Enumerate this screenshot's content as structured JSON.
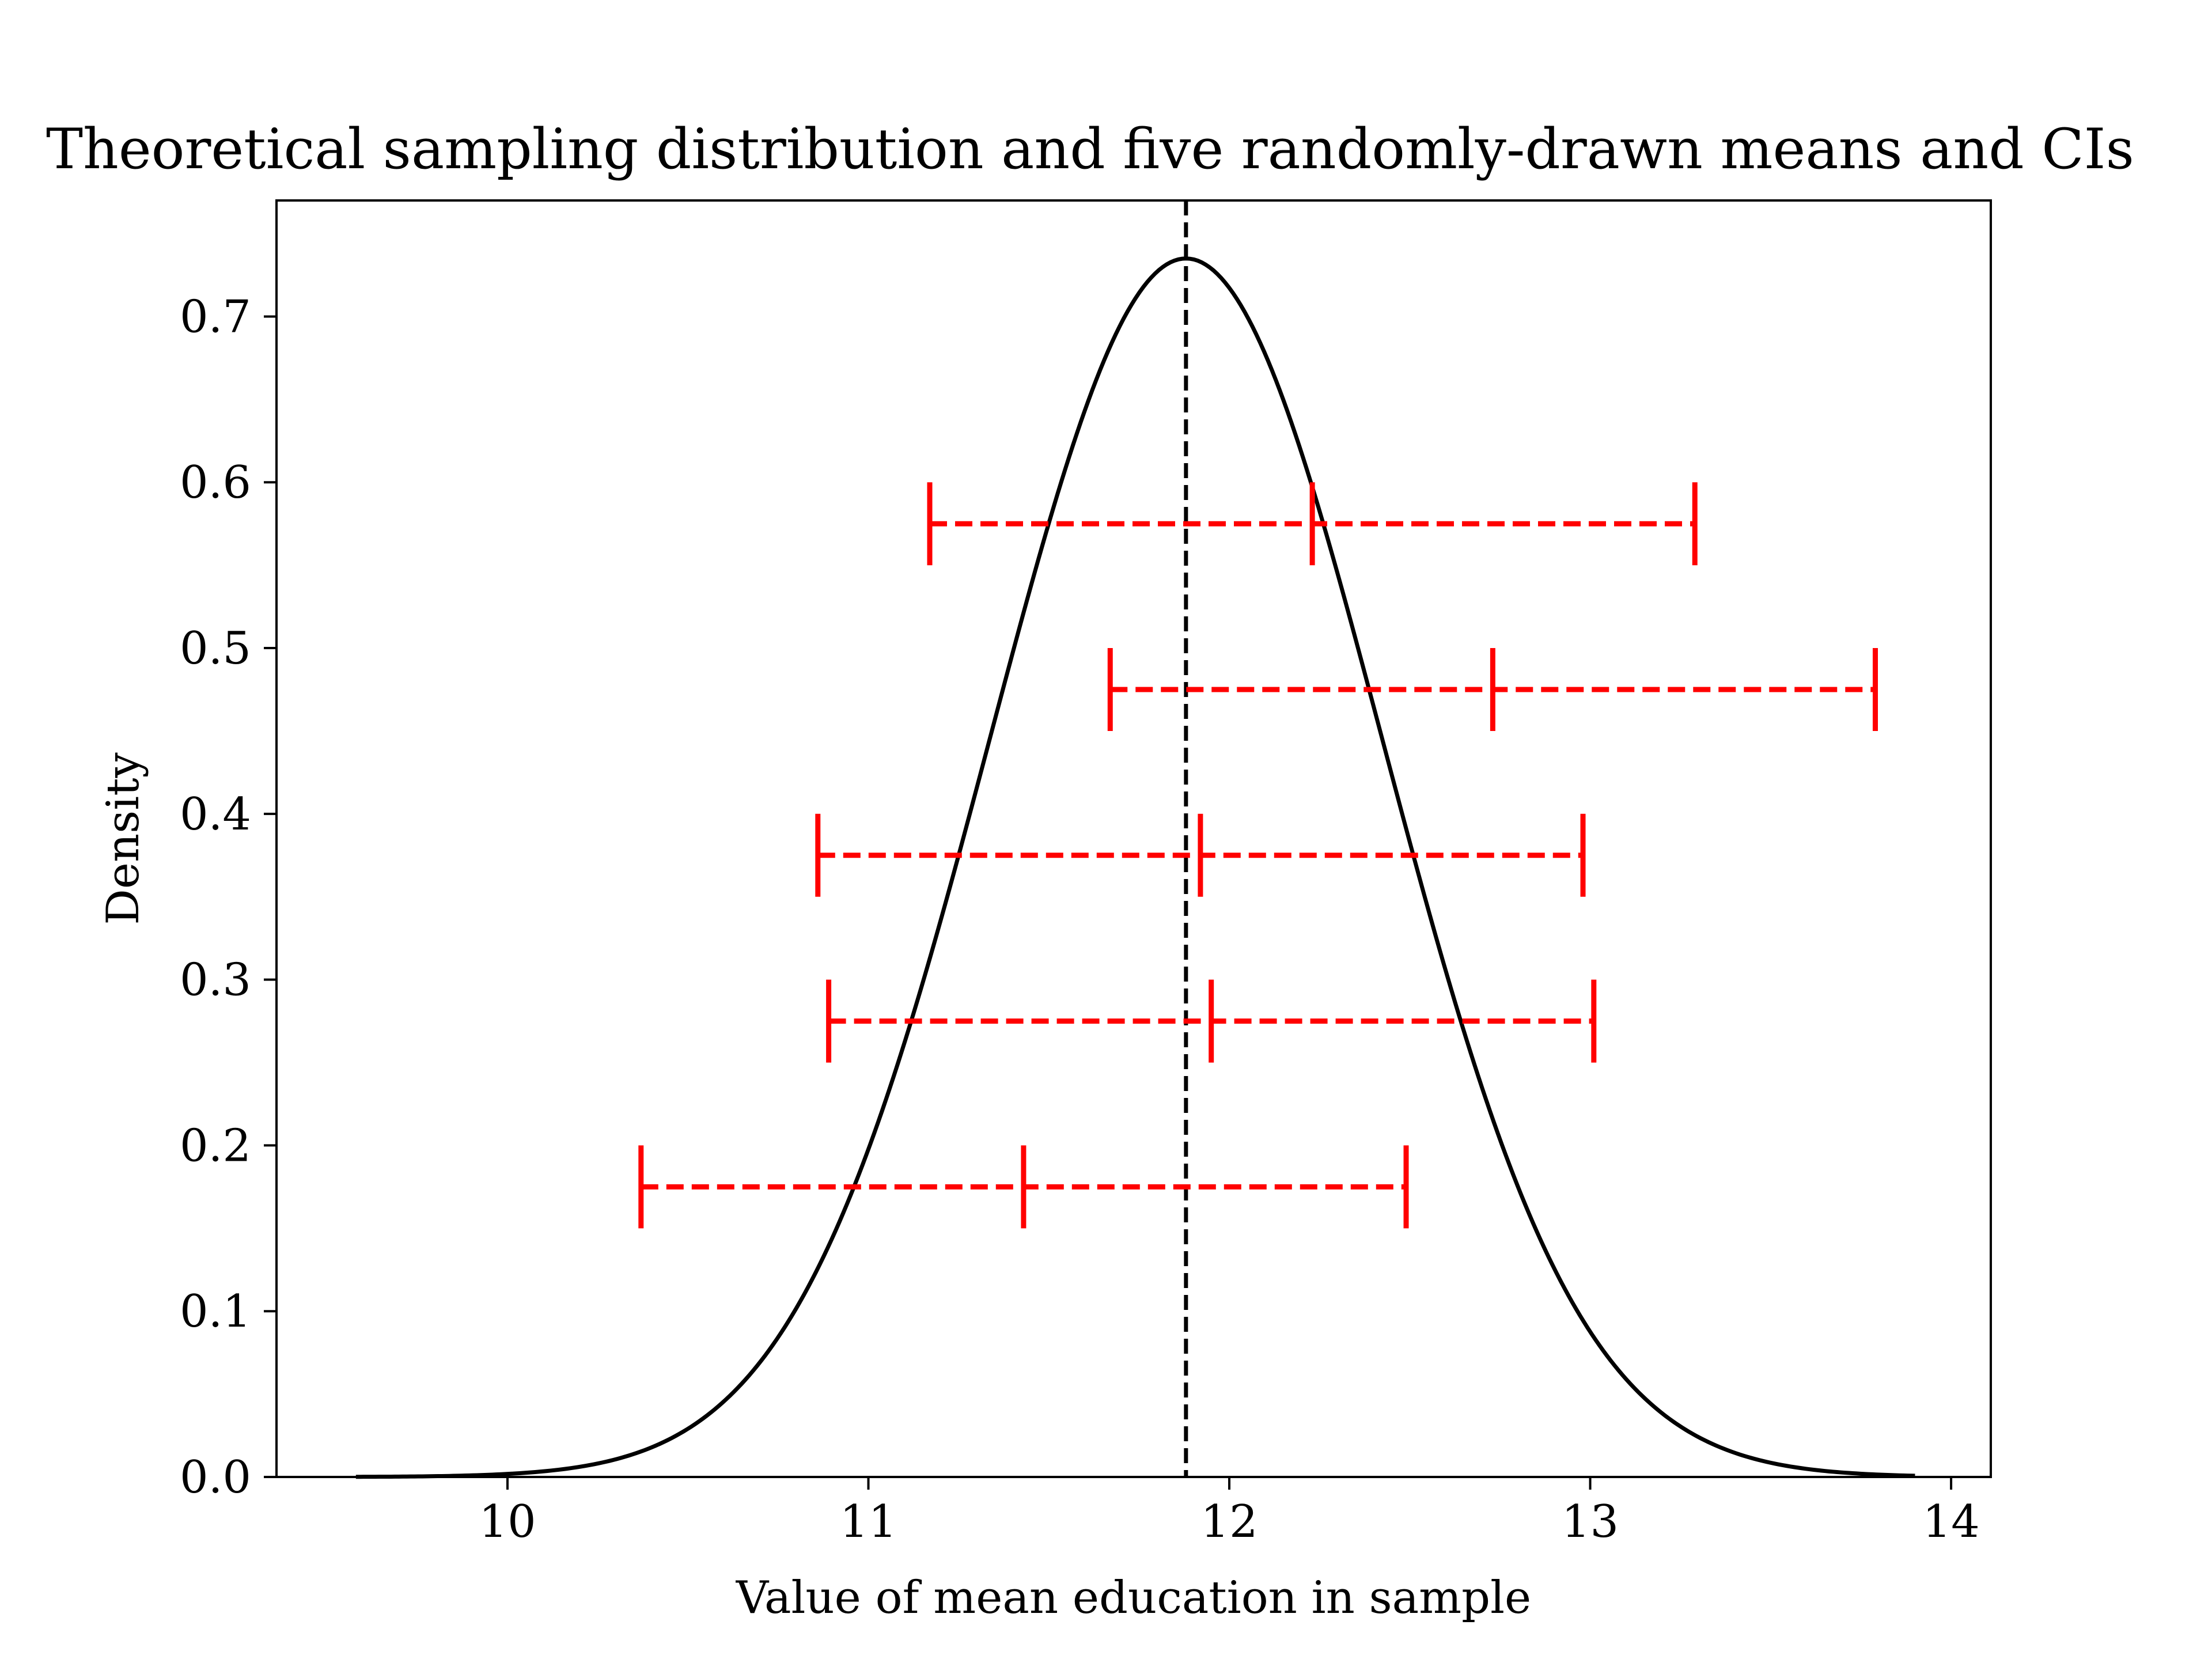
{
  "chart_data": {
    "type": "line",
    "title": "Theoretical sampling distribution and five randomly-drawn means and CIs",
    "xlabel": "Value of mean education in sample",
    "ylabel": "Density",
    "xlim": [
      9.36,
      14.11
    ],
    "ylim": [
      0.0,
      0.77
    ],
    "x_ticks": [
      10,
      11,
      12,
      13,
      14
    ],
    "x_tick_labels": [
      "10",
      "11",
      "12",
      "13",
      "14"
    ],
    "y_ticks": [
      0.0,
      0.1,
      0.2,
      0.3,
      0.4,
      0.5,
      0.6,
      0.7
    ],
    "y_tick_labels": [
      "0.0",
      "0.1",
      "0.2",
      "0.3",
      "0.4",
      "0.5",
      "0.6",
      "0.7"
    ],
    "grid": false,
    "density_curve": {
      "name": "",
      "distribution": "normal",
      "mean": 11.88,
      "sd": 0.543,
      "x_range": [
        9.58,
        13.9
      ],
      "peak_density": 0.735,
      "color": "#000000"
    },
    "mean_line": {
      "x": 11.88,
      "style": "dashed",
      "color": "#000000"
    },
    "confidence_intervals": [
      {
        "y": 0.575,
        "lower": 11.17,
        "mean": 12.23,
        "upper": 13.29
      },
      {
        "y": 0.475,
        "lower": 11.67,
        "mean": 12.73,
        "upper": 13.79
      },
      {
        "y": 0.375,
        "lower": 10.86,
        "mean": 11.92,
        "upper": 12.98
      },
      {
        "y": 0.275,
        "lower": 10.89,
        "mean": 11.95,
        "upper": 13.01
      },
      {
        "y": 0.175,
        "lower": 10.37,
        "mean": 11.43,
        "upper": 12.49
      }
    ],
    "ci_color": "#ff0000"
  }
}
